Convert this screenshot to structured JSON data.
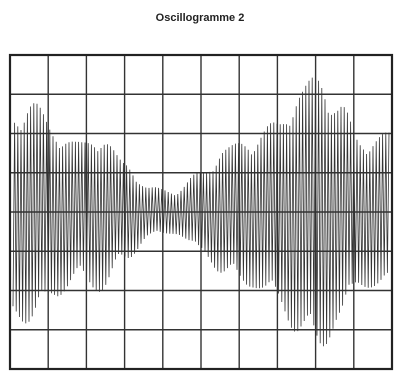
{
  "title": "Oscillogramme 2"
}
